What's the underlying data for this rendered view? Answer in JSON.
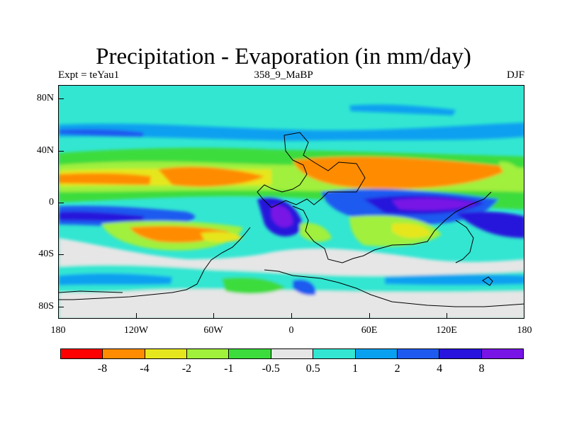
{
  "title": "Precipitation - Evaporation (in mm/day)",
  "subtitle_left": "Expt = teYau1",
  "subtitle_center": "358_9_MaBP",
  "subtitle_right": "DJF",
  "lat_ticks": [
    "80N",
    "40N",
    "0",
    "40S",
    "80S"
  ],
  "lon_ticks": [
    "180",
    "120W",
    "60W",
    "0",
    "60E",
    "120E",
    "180"
  ],
  "colorbar": {
    "colors": [
      "#ff0000",
      "#ff8c00",
      "#e6e61e",
      "#a0f03c",
      "#3cdc3c",
      "#e6e6e6",
      "#32e6d2",
      "#0aa0f0",
      "#1e5af0",
      "#2814dc",
      "#7814e6"
    ],
    "labels": [
      "-8",
      "-4",
      "-2",
      "-1",
      "-0.5",
      "0.5",
      "1",
      "2",
      "4",
      "8"
    ]
  }
}
